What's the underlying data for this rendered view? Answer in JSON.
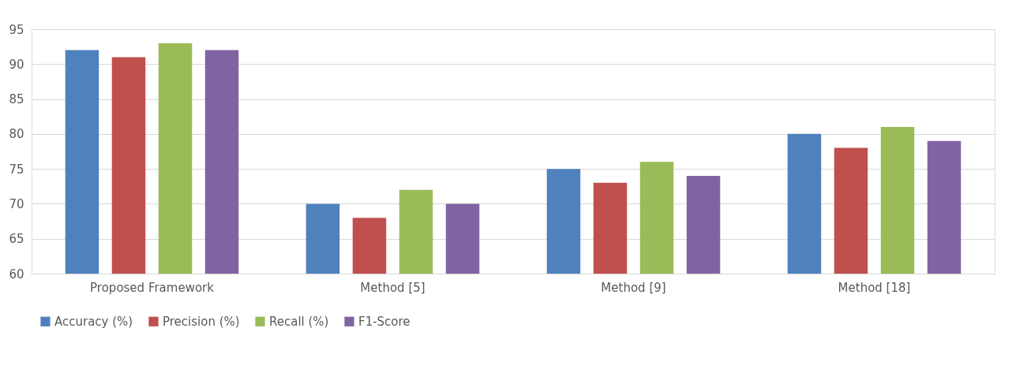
{
  "chart_data": {
    "type": "bar",
    "categories": [
      "Proposed Framework",
      "Method [5]",
      "Method [9]",
      "Method [18]"
    ],
    "series": [
      {
        "name": "Accuracy (%)",
        "color": "#4f81bd",
        "values": [
          92,
          70,
          75,
          80
        ]
      },
      {
        "name": "Precision (%)",
        "color": "#c0504d",
        "values": [
          91,
          68,
          73,
          78
        ]
      },
      {
        "name": "Recall (%)",
        "color": "#9bbb59",
        "values": [
          93,
          72,
          76,
          81
        ]
      },
      {
        "name": "F1-Score",
        "color": "#8064a2",
        "values": [
          92,
          70,
          74,
          79
        ]
      }
    ],
    "ylim": [
      60,
      95
    ],
    "yticks": [
      60,
      65,
      70,
      75,
      80,
      85,
      90,
      95
    ],
    "grid": "y",
    "legend": "bottom"
  }
}
